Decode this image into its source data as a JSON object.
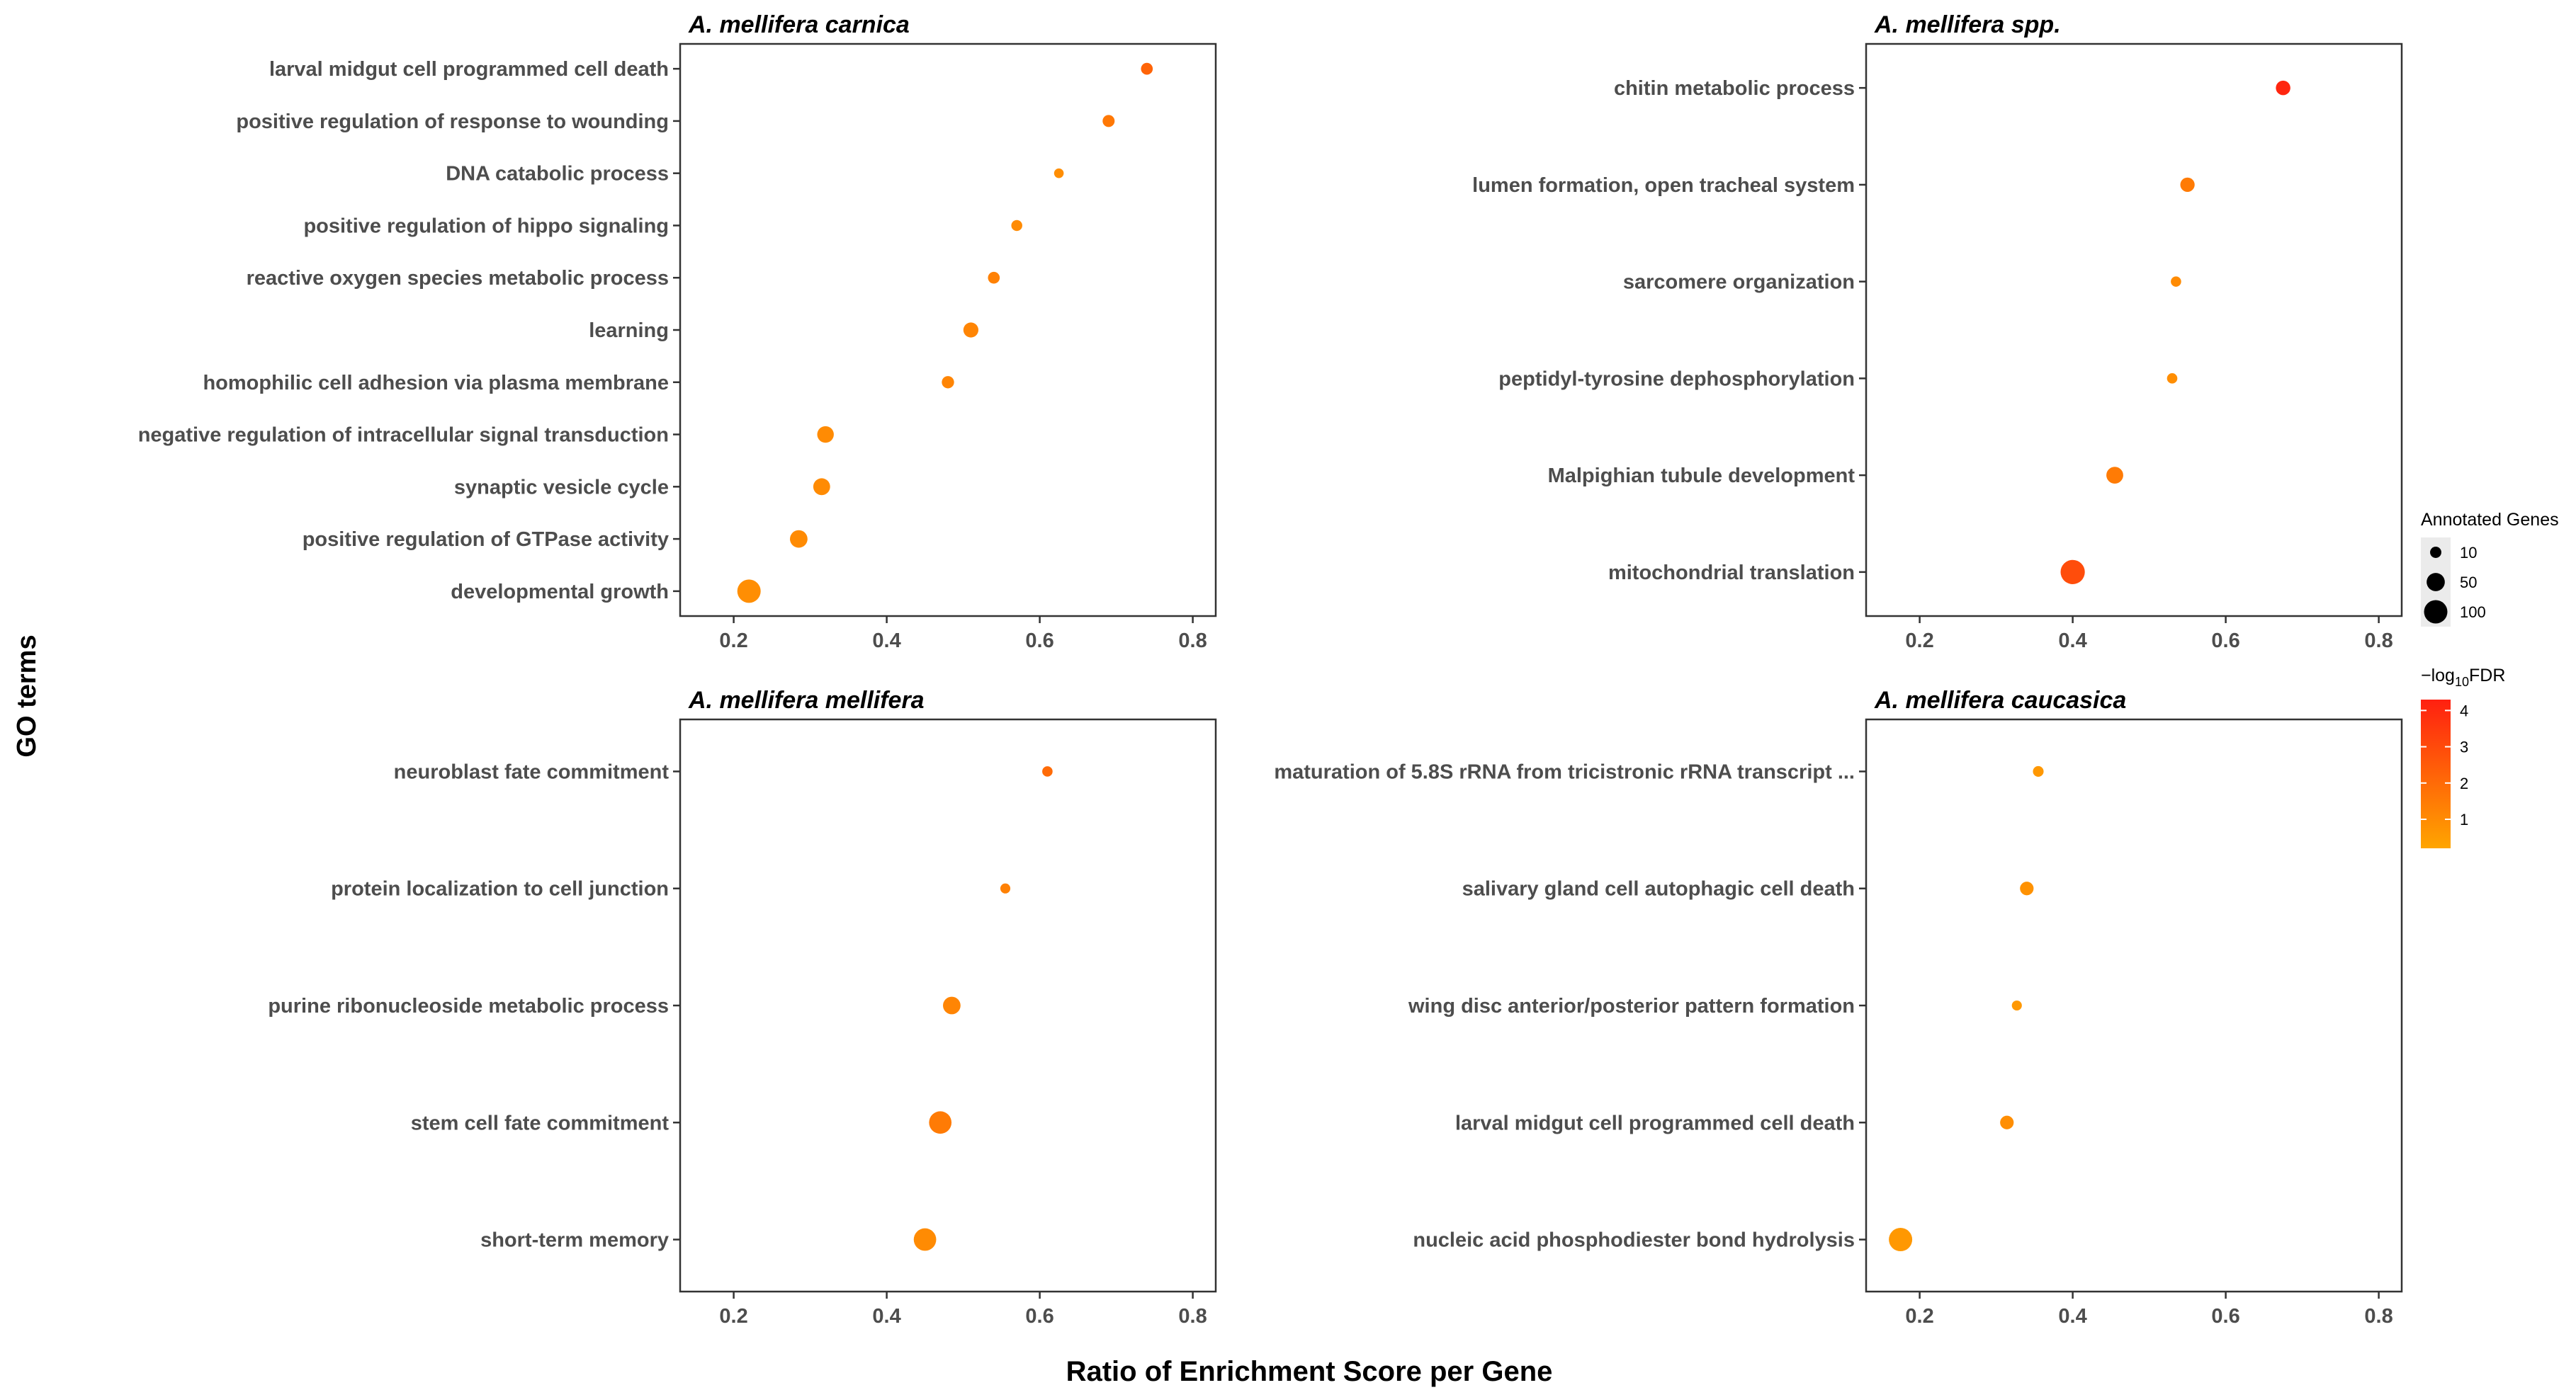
{
  "figure": {
    "xlabel": "Ratio of Enrichment Score per Gene",
    "ylabel": "GO terms"
  },
  "colors": {
    "low": "#FFA500",
    "high": "#FF2010",
    "panel_border": "#333333",
    "tick_text": "#4d4d4d"
  },
  "legend": {
    "size_title": "Annotated Genes",
    "size_items": [
      {
        "label": "10",
        "value": 10
      },
      {
        "label": "50",
        "value": 50
      },
      {
        "label": "100",
        "value": 100
      }
    ],
    "color_title_prefix": "−log",
    "color_title_sub": "10",
    "color_title_suffix": "FDR",
    "color_ticks": [
      {
        "label": "4",
        "value": 4
      },
      {
        "label": "3",
        "value": 3
      },
      {
        "label": "2",
        "value": 2
      },
      {
        "label": "1",
        "value": 1
      }
    ],
    "color_range": [
      0.2,
      4.3
    ]
  },
  "chart_data": [
    {
      "type": "scatter",
      "title": "A. mellifera carnica",
      "xlim": [
        0.13,
        0.83
      ],
      "xticks": [
        {
          "label": "0.2",
          "value": 0.2
        },
        {
          "label": "0.4",
          "value": 0.4
        },
        {
          "label": "0.6",
          "value": 0.6
        },
        {
          "label": "0.8",
          "value": 0.8
        }
      ],
      "points": [
        {
          "term": "larval midgut cell programmed cell death",
          "x": 0.74,
          "genes": 12,
          "log10fdr": 2.2
        },
        {
          "term": "positive regulation of response to wounding",
          "x": 0.69,
          "genes": 13,
          "log10fdr": 1.6
        },
        {
          "term": "DNA catabolic process",
          "x": 0.625,
          "genes": 5,
          "log10fdr": 0.9
        },
        {
          "term": "positive regulation of hippo signaling",
          "x": 0.57,
          "genes": 9,
          "log10fdr": 1.0
        },
        {
          "term": "reactive oxygen species metabolic process",
          "x": 0.54,
          "genes": 12,
          "log10fdr": 1.3
        },
        {
          "term": "learning",
          "x": 0.51,
          "genes": 28,
          "log10fdr": 1.2
        },
        {
          "term": "homophilic cell adhesion via plasma membrane",
          "x": 0.48,
          "genes": 14,
          "log10fdr": 1.2
        },
        {
          "term": "negative regulation of intracellular signal transduction",
          "x": 0.32,
          "genes": 38,
          "log10fdr": 1.0
        },
        {
          "term": "synaptic vesicle cycle",
          "x": 0.315,
          "genes": 40,
          "log10fdr": 1.0
        },
        {
          "term": "positive regulation of GTPase activity",
          "x": 0.285,
          "genes": 45,
          "log10fdr": 1.0
        },
        {
          "term": "developmental growth",
          "x": 0.22,
          "genes": 100,
          "log10fdr": 0.9
        }
      ]
    },
    {
      "type": "scatter",
      "title": "A. mellifera spp.",
      "xlim": [
        0.13,
        0.83
      ],
      "xticks": [
        {
          "label": "0.2",
          "value": 0.2
        },
        {
          "label": "0.4",
          "value": 0.4
        },
        {
          "label": "0.6",
          "value": 0.6
        },
        {
          "label": "0.8",
          "value": 0.8
        }
      ],
      "points": [
        {
          "term": "chitin metabolic process",
          "x": 0.675,
          "genes": 25,
          "log10fdr": 4.1
        },
        {
          "term": "lumen formation, open tracheal system",
          "x": 0.55,
          "genes": 24,
          "log10fdr": 1.5
        },
        {
          "term": "sarcomere organization",
          "x": 0.535,
          "genes": 7,
          "log10fdr": 1.0
        },
        {
          "term": "peptidyl-tyrosine dephosphorylation",
          "x": 0.53,
          "genes": 7,
          "log10fdr": 0.9
        },
        {
          "term": "Malpighian tubule development",
          "x": 0.455,
          "genes": 40,
          "log10fdr": 1.5
        },
        {
          "term": "mitochondrial translation",
          "x": 0.4,
          "genes": 110,
          "log10fdr": 2.9
        }
      ]
    },
    {
      "type": "scatter",
      "title": "A. mellifera mellifera",
      "xlim": [
        0.13,
        0.83
      ],
      "xticks": [
        {
          "label": "0.2",
          "value": 0.2
        },
        {
          "label": "0.4",
          "value": 0.4
        },
        {
          "label": "0.6",
          "value": 0.6
        },
        {
          "label": "0.8",
          "value": 0.8
        }
      ],
      "points": [
        {
          "term": "neuroblast fate commitment",
          "x": 0.61,
          "genes": 7,
          "log10fdr": 2.0
        },
        {
          "term": "protein localization to cell junction",
          "x": 0.555,
          "genes": 6,
          "log10fdr": 1.3
        },
        {
          "term": "purine ribonucleoside metabolic process",
          "x": 0.485,
          "genes": 45,
          "log10fdr": 1.2
        },
        {
          "term": "stem cell fate commitment",
          "x": 0.47,
          "genes": 90,
          "log10fdr": 1.5
        },
        {
          "term": "short-term memory",
          "x": 0.45,
          "genes": 90,
          "log10fdr": 1.0
        }
      ]
    },
    {
      "type": "scatter",
      "title": "A. mellifera caucasica",
      "xlim": [
        0.13,
        0.83
      ],
      "xticks": [
        {
          "label": "0.2",
          "value": 0.2
        },
        {
          "label": "0.4",
          "value": 0.4
        },
        {
          "label": "0.6",
          "value": 0.6
        },
        {
          "label": "0.8",
          "value": 0.8
        }
      ],
      "points": [
        {
          "term": "maturation of 5.8S rRNA from tricistronic rRNA transcript ...",
          "x": 0.355,
          "genes": 8,
          "log10fdr": 0.6
        },
        {
          "term": "salivary gland cell autophagic cell death",
          "x": 0.34,
          "genes": 20,
          "log10fdr": 0.8
        },
        {
          "term": "wing disc anterior/posterior pattern formation",
          "x": 0.327,
          "genes": 6,
          "log10fdr": 0.6
        },
        {
          "term": "larval midgut cell programmed cell death",
          "x": 0.314,
          "genes": 20,
          "log10fdr": 0.9
        },
        {
          "term": "nucleic acid phosphodiester bond hydrolysis",
          "x": 0.175,
          "genes": 100,
          "log10fdr": 0.6
        }
      ]
    }
  ]
}
